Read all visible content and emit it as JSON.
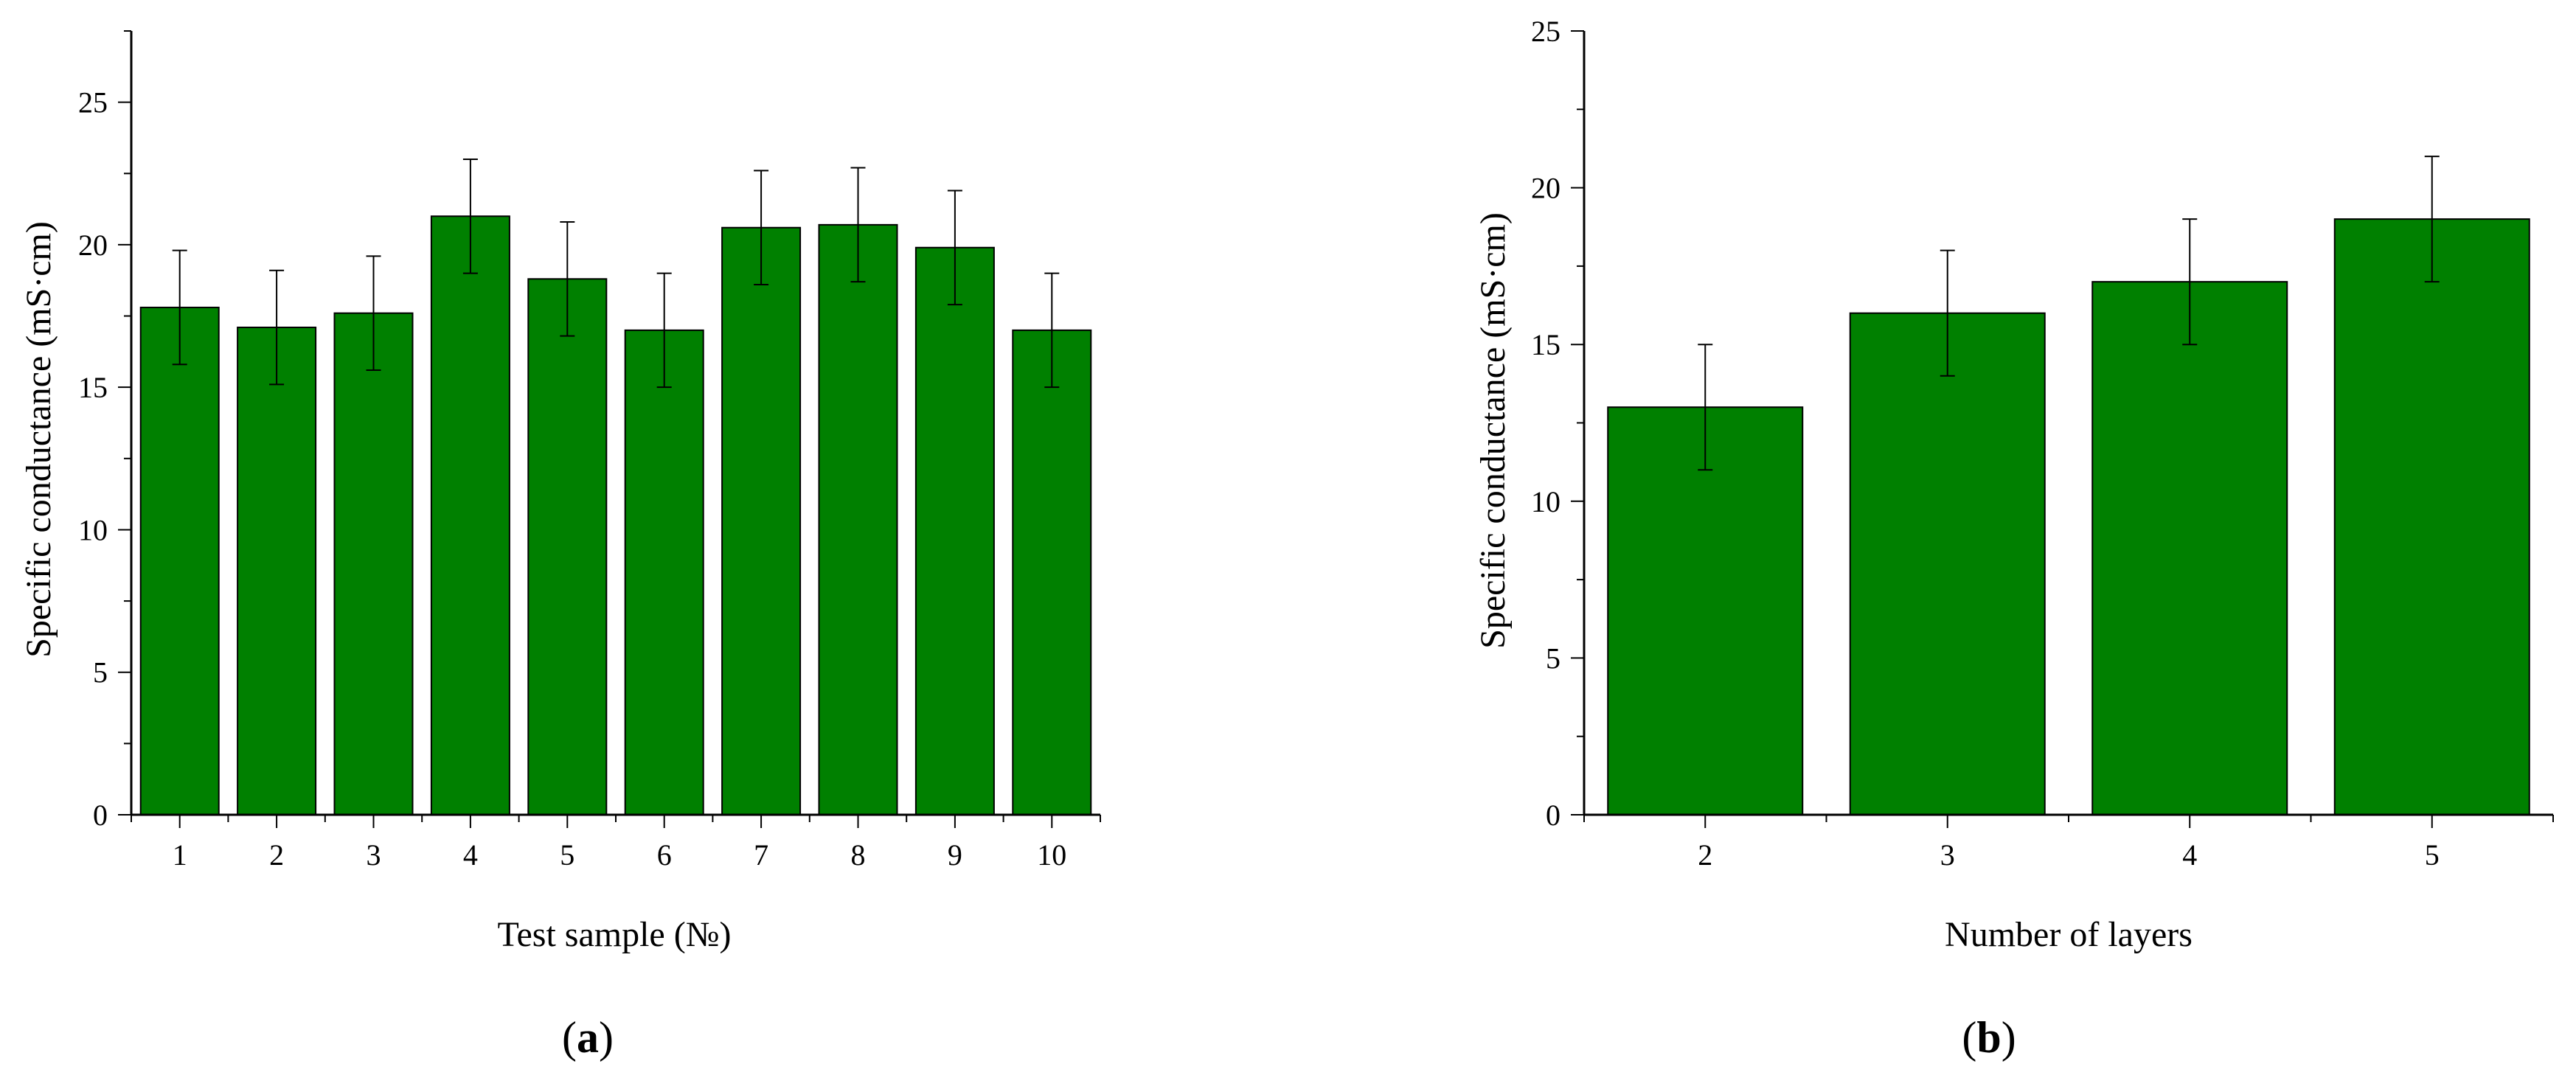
{
  "colors": {
    "bar_fill": "#008000",
    "bar_stroke": "#000000",
    "axis": "#000000"
  },
  "chart_data": [
    {
      "type": "bar",
      "panel_label": {
        "open": "(",
        "letter": "a",
        "close": ")"
      },
      "categories": [
        "1",
        "2",
        "3",
        "4",
        "5",
        "6",
        "7",
        "8",
        "9",
        "10"
      ],
      "values": [
        17.8,
        17.1,
        17.6,
        21.0,
        18.8,
        17.0,
        20.6,
        20.7,
        19.9,
        17.0
      ],
      "errors": [
        2.0,
        2.0,
        2.0,
        2.0,
        2.0,
        2.0,
        2.0,
        2.0,
        2.0,
        2.0
      ],
      "xlabel": "Test sample (№)",
      "ylabel": "Specific conductance (mS·cm)",
      "ylim": [
        0,
        27.5
      ],
      "yticks": [
        0,
        5,
        10,
        15,
        20,
        25
      ],
      "grid": false,
      "legend": "none"
    },
    {
      "type": "bar",
      "panel_label": {
        "open": "(",
        "letter": "b",
        "close": ")"
      },
      "categories": [
        "2",
        "3",
        "4",
        "5"
      ],
      "values": [
        13,
        16,
        17,
        19
      ],
      "errors": [
        2,
        2,
        2,
        2
      ],
      "xlabel": "Number of layers",
      "ylabel": "Specific conductance (mS·cm)",
      "ylim": [
        0,
        25
      ],
      "yticks": [
        0,
        5,
        10,
        15,
        20,
        25
      ],
      "grid": false,
      "legend": "none"
    }
  ]
}
